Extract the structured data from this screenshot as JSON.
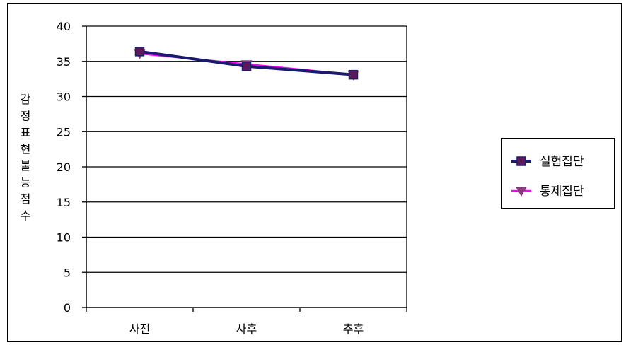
{
  "chart_data": {
    "type": "line",
    "title": "",
    "xlabel": "",
    "ylabel": "감정표현불능점수",
    "categories": [
      "사전",
      "사후",
      "추후"
    ],
    "ylim": [
      0,
      40
    ],
    "yticks": [
      0,
      5,
      10,
      15,
      20,
      25,
      30,
      35,
      40
    ],
    "grid": true,
    "legend_position": "right",
    "series": [
      {
        "name": "실험집단",
        "values": [
          36.4,
          34.3,
          33.1
        ],
        "color": "#1a1a6e",
        "marker": "square",
        "marker_color": "#5a1a5a"
      },
      {
        "name": "통제집단",
        "values": [
          36.1,
          34.6,
          33.1
        ],
        "color": "#ff00ff",
        "marker": "triangle-down",
        "marker_color": "#8a3a7a"
      }
    ]
  }
}
